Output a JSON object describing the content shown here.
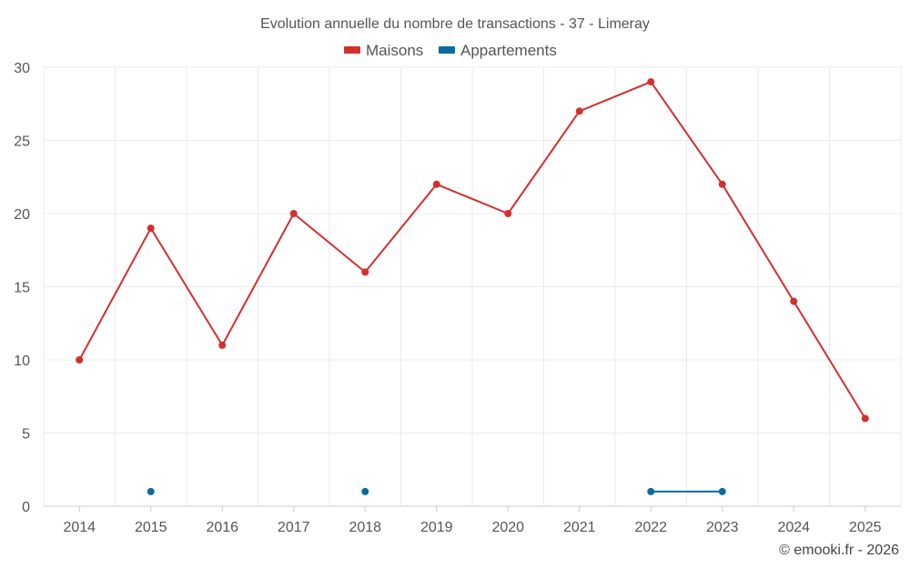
{
  "chart_data": {
    "type": "line",
    "title": "Evolution annuelle du nombre de transactions - 37 - Limeray",
    "xlabel": "",
    "ylabel": "",
    "x": [
      "2014",
      "2015",
      "2016",
      "2017",
      "2018",
      "2019",
      "2020",
      "2021",
      "2022",
      "2023",
      "2024",
      "2025"
    ],
    "ylim": [
      0,
      30
    ],
    "yticks": [
      0,
      5,
      10,
      15,
      20,
      25,
      30
    ],
    "grid": true,
    "legend_position": "top-center",
    "series": [
      {
        "name": "Maisons",
        "color": "#d32f2f",
        "values": [
          10,
          19,
          11,
          20,
          16,
          22,
          20,
          27,
          29,
          22,
          14,
          6
        ]
      },
      {
        "name": "Appartements",
        "color": "#0b6aa2",
        "values": [
          null,
          1,
          null,
          null,
          1,
          null,
          null,
          null,
          1,
          1,
          null,
          null
        ]
      }
    ]
  },
  "credit": "© emooki.fr - 2026"
}
